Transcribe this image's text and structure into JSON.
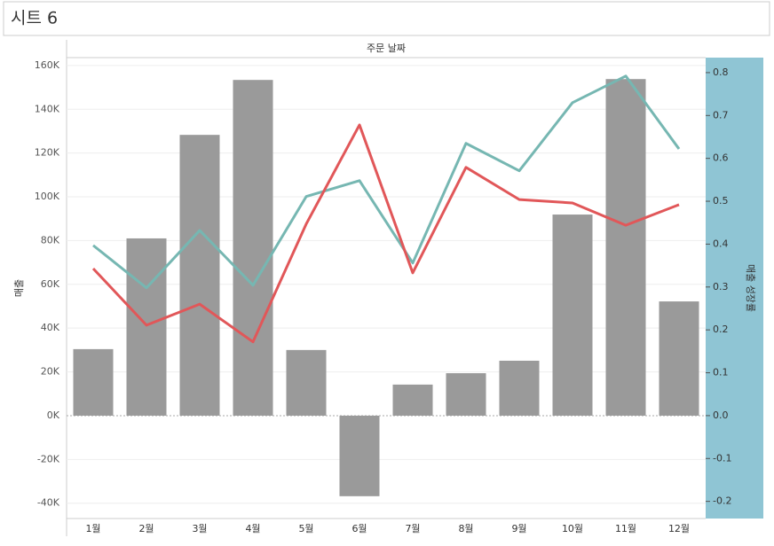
{
  "sheet_title": "시트 6",
  "chart_data": {
    "type": "bar-line",
    "header": "주문 날짜",
    "y_label": "매출",
    "y2_label": "매출 성장률",
    "categories": [
      "1월",
      "2월",
      "3월",
      "4월",
      "5월",
      "6월",
      "7월",
      "8월",
      "9월",
      "10월",
      "11월",
      "12월"
    ],
    "values": [
      30400,
      81000,
      128300,
      153400,
      30000,
      -36800,
      14200,
      19400,
      25100,
      91900,
      153800,
      52200
    ],
    "color": "#9a9a9a",
    "series": [
      {
        "color": "#76b7b2",
        "axis": "y2",
        "values": [
          0.397,
          0.298,
          0.432,
          0.304,
          0.511,
          0.548,
          0.356,
          0.635,
          0.571,
          0.73,
          0.792,
          0.622
        ]
      },
      {
        "color": "#e15759",
        "axis": "y2",
        "values": [
          0.343,
          0.211,
          0.26,
          0.172,
          0.447,
          0.678,
          0.333,
          0.579,
          0.504,
          0.496,
          0.444,
          0.492
        ]
      }
    ],
    "ylim": [
      -47000,
      163600
    ],
    "yticks": [
      {
        "value": -40000,
        "label": "-40K"
      },
      {
        "value": -20000,
        "label": "-20K"
      },
      {
        "value": 0,
        "label": "0K"
      },
      {
        "value": 20000,
        "label": "20K"
      },
      {
        "value": 40000,
        "label": "40K"
      },
      {
        "value": 60000,
        "label": "60K"
      },
      {
        "value": 80000,
        "label": "80K"
      },
      {
        "value": 100000,
        "label": "100K"
      },
      {
        "value": 120000,
        "label": "120K"
      },
      {
        "value": 140000,
        "label": "140K"
      },
      {
        "value": 160000,
        "label": "160K"
      }
    ],
    "y2lim": [
      -0.24,
      0.835
    ],
    "y2ticks": [
      -0.2,
      -0.1,
      {
        "value": 0,
        "label": "0.0"
      },
      0.1,
      0.2,
      0.3,
      0.4,
      0.5,
      0.6,
      0.7,
      0.8
    ],
    "grid": true
  }
}
